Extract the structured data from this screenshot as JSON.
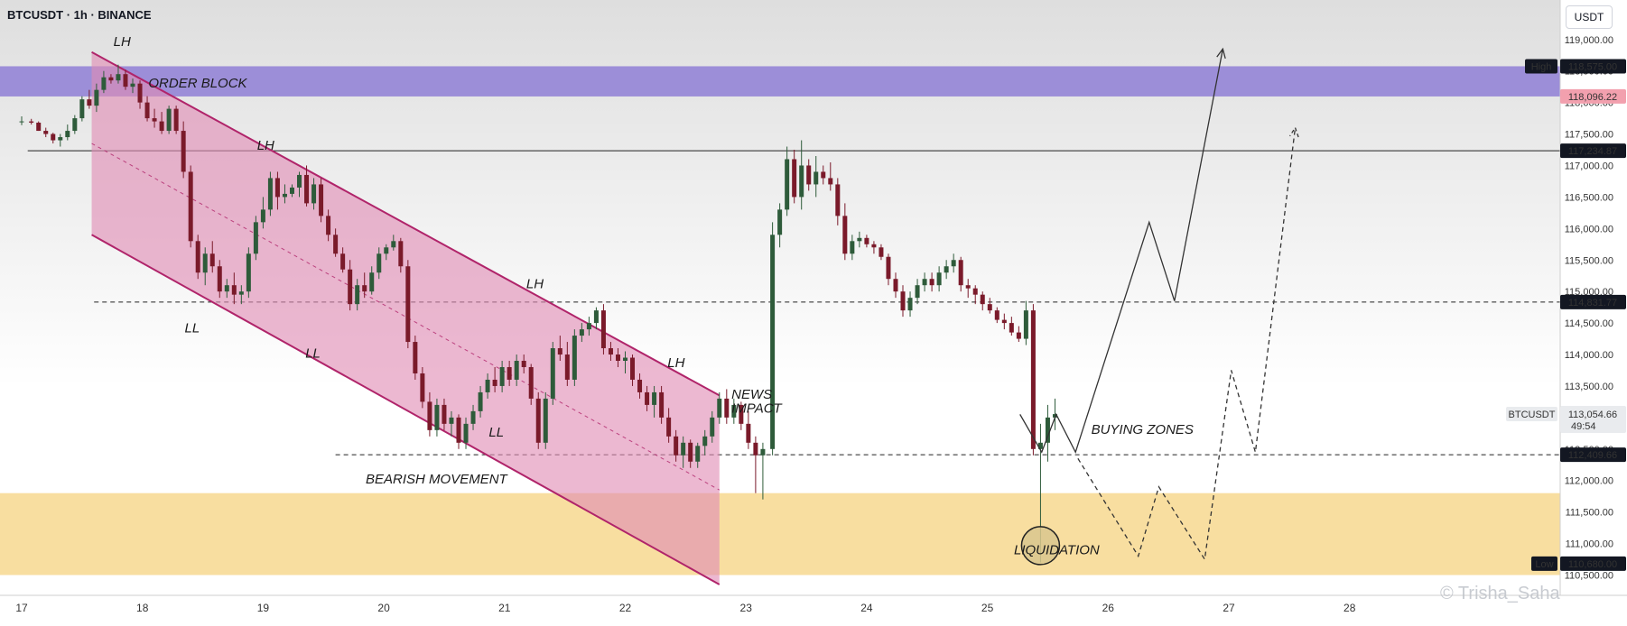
{
  "header": {
    "title": "BTCUSDT · 1h · BINANCE",
    "currency": "USDT"
  },
  "watermark": "© Trisha_Saha",
  "colors": {
    "bull": "#2e5b3a",
    "bear": "#7a1a2a",
    "channel_fill": "#e08cb4",
    "channel_line": "#b0246a",
    "order_block": "#9c8ed8",
    "liquidity_zone": "#f8dea0",
    "tag_dark": "#131722",
    "tag_pink": "#f2a0ae"
  },
  "chart_data": {
    "type": "candlestick",
    "x_axis": {
      "labels": [
        "17",
        "18",
        "19",
        "20",
        "21",
        "22",
        "23",
        "24",
        "25",
        "26",
        "27",
        "28"
      ]
    },
    "y_axis": {
      "range": [
        110500,
        119000
      ],
      "ticks": [
        119000,
        118500,
        118000,
        117500,
        117000,
        116500,
        116000,
        115500,
        115000,
        114500,
        114000,
        113500,
        113000,
        112500,
        112000,
        111500,
        111000,
        110500
      ]
    },
    "price_tags": [
      {
        "label": "High",
        "value": 118575,
        "text": "118,575.00",
        "style": "dark"
      },
      {
        "value": 118096.22,
        "text": "118,096.22",
        "style": "pink"
      },
      {
        "value": 117234.87,
        "text": "117,234.87",
        "style": "dark"
      },
      {
        "value": 114831.77,
        "text": "114,831.77",
        "style": "dark"
      },
      {
        "label": "BTCUSDT",
        "value": 113054.66,
        "text": "113,054.66",
        "sub": "49:54",
        "style": "grey"
      },
      {
        "value": 112409.66,
        "text": "112,409.66",
        "style": "dark"
      },
      {
        "label": "Low",
        "value": 110680,
        "text": "110,680.00",
        "style": "dark"
      }
    ],
    "horizontal_lines": [
      {
        "value": 117234.87,
        "dashed": false,
        "from_day": 17.05
      },
      {
        "value": 114831.77,
        "dashed": true,
        "from_day": 17.6
      },
      {
        "value": 112409.66,
        "dashed": true,
        "from_day": 19.6
      }
    ],
    "zones": {
      "order_block": {
        "label": "ORDER BLOCK",
        "low": 118096,
        "high": 118575
      },
      "liquidity": {
        "low": 110500,
        "high": 111800
      }
    },
    "channel": {
      "label": "BEARISH MOVEMENT",
      "upper": [
        [
          17.58,
          118800
        ],
        [
          22.78,
          113350
        ]
      ],
      "lower": [
        [
          17.58,
          115900
        ],
        [
          22.78,
          110350
        ]
      ]
    },
    "annotations": [
      {
        "text": "LH",
        "day": 17.76,
        "price": 118900
      },
      {
        "text": "LH",
        "day": 18.95,
        "price": 117250
      },
      {
        "text": "LL",
        "day": 18.35,
        "price": 114350
      },
      {
        "text": "LL",
        "day": 19.35,
        "price": 113950
      },
      {
        "text": "LH",
        "day": 21.18,
        "price": 115050
      },
      {
        "text": "LL",
        "day": 20.87,
        "price": 112700
      },
      {
        "text": "LH",
        "day": 22.35,
        "price": 113800
      },
      {
        "text": "NEWS",
        "day": 22.88,
        "price": 113300
      },
      {
        "text": "IMPACT",
        "day": 22.88,
        "price": 113080
      },
      {
        "text": "BEARISH MOVEMENT",
        "day": 19.85,
        "price": 111950
      },
      {
        "text": "BUYING ZONES",
        "day": 25.86,
        "price": 112740
      },
      {
        "text": "ORDER BLOCK",
        "day": 18.05,
        "price": 118240
      },
      {
        "text": "LIQUIDATION",
        "day": 25.22,
        "price": 110830
      }
    ],
    "projection_solid": [
      [
        25.27,
        113050
      ],
      [
        25.45,
        112450
      ],
      [
        25.57,
        113050
      ],
      [
        25.73,
        112450
      ],
      [
        26.34,
        116100
      ],
      [
        26.55,
        114850
      ],
      [
        26.95,
        118850
      ]
    ],
    "projection_dashed": [
      [
        25.75,
        112350
      ],
      [
        26.25,
        110800
      ],
      [
        26.42,
        111900
      ],
      [
        26.8,
        110750
      ],
      [
        27.02,
        113750
      ],
      [
        27.22,
        112450
      ],
      [
        27.55,
        117600
      ]
    ],
    "candles": [
      [
        16.5,
        117750,
        117780,
        117680,
        117700
      ],
      [
        17.0,
        117700,
        117780,
        117640,
        117700
      ],
      [
        17.08,
        117700,
        117740,
        117650,
        117680
      ],
      [
        17.14,
        117680,
        117700,
        117550,
        117550
      ],
      [
        17.2,
        117550,
        117600,
        117450,
        117500
      ],
      [
        17.26,
        117500,
        117520,
        117350,
        117400
      ],
      [
        17.32,
        117400,
        117500,
        117300,
        117450
      ],
      [
        17.38,
        117450,
        117650,
        117400,
        117550
      ],
      [
        17.44,
        117550,
        117800,
        117500,
        117750
      ],
      [
        17.5,
        117750,
        118100,
        117700,
        118050
      ],
      [
        17.56,
        118050,
        118200,
        117900,
        117950
      ],
      [
        17.62,
        117950,
        118300,
        117850,
        118200
      ],
      [
        17.68,
        118200,
        118500,
        118150,
        118400
      ],
      [
        17.74,
        118400,
        118450,
        118300,
        118350
      ],
      [
        17.8,
        118350,
        118600,
        118300,
        118450
      ],
      [
        17.86,
        118450,
        118520,
        118200,
        118250
      ],
      [
        17.92,
        118250,
        118380,
        118150,
        118300
      ],
      [
        17.98,
        118300,
        118350,
        117900,
        118000
      ],
      [
        18.04,
        118000,
        118100,
        117700,
        117750
      ],
      [
        18.1,
        117750,
        117900,
        117600,
        117700
      ],
      [
        18.16,
        117700,
        117850,
        117500,
        117550
      ],
      [
        18.22,
        117550,
        117950,
        117500,
        117900
      ],
      [
        18.28,
        117900,
        117950,
        117500,
        117550
      ],
      [
        18.34,
        117550,
        117700,
        116800,
        116900
      ],
      [
        18.4,
        116900,
        117000,
        115700,
        115800
      ],
      [
        18.46,
        115800,
        115900,
        115200,
        115300
      ],
      [
        18.52,
        115300,
        115700,
        115100,
        115600
      ],
      [
        18.58,
        115600,
        115800,
        115300,
        115400
      ],
      [
        18.64,
        115400,
        115500,
        114900,
        115000
      ],
      [
        18.7,
        115000,
        115200,
        114900,
        115100
      ],
      [
        18.76,
        115100,
        115300,
        114800,
        114950
      ],
      [
        18.82,
        114950,
        115100,
        114800,
        115000
      ],
      [
        18.88,
        115000,
        115700,
        114900,
        115600
      ],
      [
        18.94,
        115600,
        116200,
        115500,
        116100
      ],
      [
        19.0,
        116100,
        116500,
        116000,
        116300
      ],
      [
        19.06,
        116300,
        116900,
        116200,
        116800
      ],
      [
        19.12,
        116800,
        116900,
        116300,
        116500
      ],
      [
        19.18,
        116500,
        116700,
        116400,
        116550
      ],
      [
        19.24,
        116550,
        116700,
        116500,
        116650
      ],
      [
        19.3,
        116650,
        116900,
        116500,
        116850
      ],
      [
        19.36,
        116850,
        117000,
        116350,
        116400
      ],
      [
        19.42,
        116400,
        116800,
        116300,
        116700
      ],
      [
        19.48,
        116700,
        116800,
        116100,
        116200
      ],
      [
        19.54,
        116200,
        116300,
        115800,
        115900
      ],
      [
        19.6,
        115900,
        116000,
        115550,
        115600
      ],
      [
        19.66,
        115600,
        115700,
        115300,
        115350
      ],
      [
        19.72,
        115350,
        115500,
        114700,
        114800
      ],
      [
        19.78,
        114800,
        115200,
        114700,
        115100
      ],
      [
        19.84,
        115100,
        115300,
        114900,
        115000
      ],
      [
        19.9,
        115000,
        115400,
        114950,
        115300
      ],
      [
        19.96,
        115300,
        115700,
        115200,
        115600
      ],
      [
        20.02,
        115600,
        115750,
        115500,
        115700
      ],
      [
        20.08,
        115700,
        115900,
        115650,
        115800
      ],
      [
        20.14,
        115800,
        115850,
        115300,
        115400
      ],
      [
        20.2,
        115400,
        115500,
        114100,
        114200
      ],
      [
        20.26,
        114200,
        114300,
        113600,
        113700
      ],
      [
        20.32,
        113700,
        113800,
        113150,
        113250
      ],
      [
        20.38,
        113250,
        113400,
        112700,
        112800
      ],
      [
        20.44,
        112800,
        113300,
        112700,
        113200
      ],
      [
        20.5,
        113200,
        113300,
        112800,
        112900
      ],
      [
        20.56,
        112900,
        113100,
        112700,
        113000
      ],
      [
        20.62,
        113000,
        113050,
        112500,
        112600
      ],
      [
        20.68,
        112600,
        113000,
        112500,
        112900
      ],
      [
        20.74,
        112900,
        113200,
        112800,
        113100
      ],
      [
        20.8,
        113100,
        113500,
        113000,
        113400
      ],
      [
        20.86,
        113400,
        113700,
        113300,
        113600
      ],
      [
        20.92,
        113600,
        113800,
        113400,
        113500
      ],
      [
        20.98,
        113500,
        113900,
        113400,
        113800
      ],
      [
        21.04,
        113800,
        113900,
        113500,
        113600
      ],
      [
        21.1,
        113600,
        114000,
        113500,
        113900
      ],
      [
        21.16,
        113900,
        114000,
        113700,
        113800
      ],
      [
        21.22,
        113800,
        113850,
        113200,
        113300
      ],
      [
        21.28,
        113300,
        113400,
        112500,
        112600
      ],
      [
        21.34,
        112600,
        113400,
        112500,
        113300
      ],
      [
        21.4,
        113300,
        114200,
        113200,
        114100
      ],
      [
        21.46,
        114100,
        114300,
        113900,
        114000
      ],
      [
        21.52,
        114000,
        114200,
        113500,
        113600
      ],
      [
        21.58,
        113600,
        114400,
        113500,
        114300
      ],
      [
        21.64,
        114300,
        114500,
        114200,
        114400
      ],
      [
        21.7,
        114400,
        114600,
        114300,
        114500
      ],
      [
        21.76,
        114500,
        114750,
        114400,
        114700
      ],
      [
        21.82,
        114700,
        114800,
        114000,
        114100
      ],
      [
        21.88,
        114100,
        114200,
        113900,
        114000
      ],
      [
        21.94,
        114000,
        114100,
        113800,
        113900
      ],
      [
        22.0,
        113900,
        114050,
        113700,
        113950
      ],
      [
        22.06,
        113950,
        114000,
        113500,
        113600
      ],
      [
        22.12,
        113600,
        113700,
        113300,
        113400
      ],
      [
        22.18,
        113400,
        113500,
        113100,
        113200
      ],
      [
        22.24,
        113200,
        113500,
        113000,
        113400
      ],
      [
        22.3,
        113400,
        113500,
        112900,
        113000
      ],
      [
        22.36,
        113000,
        113150,
        112600,
        112700
      ],
      [
        22.42,
        112700,
        112800,
        112300,
        112400
      ],
      [
        22.48,
        112400,
        112700,
        112200,
        112600
      ],
      [
        22.54,
        112600,
        112650,
        112200,
        112300
      ],
      [
        22.6,
        112300,
        112600,
        112200,
        112550
      ],
      [
        22.66,
        112550,
        112800,
        112400,
        112700
      ],
      [
        22.72,
        112700,
        113100,
        112600,
        113000
      ],
      [
        22.78,
        113000,
        113400,
        112900,
        113300
      ],
      [
        22.84,
        113300,
        113450,
        112900,
        113000
      ],
      [
        22.9,
        113000,
        113300,
        112900,
        113200
      ],
      [
        22.96,
        113200,
        113250,
        112800,
        112900
      ],
      [
        23.02,
        112900,
        113100,
        112500,
        112600
      ],
      [
        23.08,
        112600,
        112700,
        111800,
        112400
      ],
      [
        23.14,
        112400,
        112600,
        111700,
        112500
      ],
      [
        23.22,
        112500,
        116100,
        112400,
        115900
      ],
      [
        23.28,
        115900,
        116400,
        115700,
        116300
      ],
      [
        23.34,
        116300,
        117300,
        116200,
        117100
      ],
      [
        23.4,
        117100,
        117250,
        116400,
        116500
      ],
      [
        23.46,
        116500,
        117400,
        116300,
        117000
      ],
      [
        23.52,
        117000,
        117100,
        116600,
        116700
      ],
      [
        23.58,
        116700,
        117150,
        116500,
        116900
      ],
      [
        23.64,
        116900,
        117000,
        116700,
        116800
      ],
      [
        23.7,
        116800,
        117050,
        116600,
        116700
      ],
      [
        23.76,
        116700,
        116800,
        116050,
        116200
      ],
      [
        23.82,
        116200,
        116400,
        115500,
        115600
      ],
      [
        23.88,
        115600,
        115900,
        115500,
        115800
      ],
      [
        23.94,
        115800,
        115950,
        115700,
        115850
      ],
      [
        24.0,
        115850,
        115900,
        115700,
        115750
      ],
      [
        24.06,
        115750,
        115800,
        115600,
        115700
      ],
      [
        24.12,
        115700,
        115750,
        115500,
        115550
      ],
      [
        24.18,
        115550,
        115600,
        115100,
        115200
      ],
      [
        24.24,
        115200,
        115300,
        114900,
        115000
      ],
      [
        24.3,
        115000,
        115100,
        114600,
        114700
      ],
      [
        24.36,
        114700,
        115000,
        114600,
        114900
      ],
      [
        24.42,
        114900,
        115200,
        114800,
        115100
      ],
      [
        24.48,
        115100,
        115300,
        115000,
        115200
      ],
      [
        24.54,
        115200,
        115300,
        115000,
        115100
      ],
      [
        24.6,
        115100,
        115400,
        115000,
        115300
      ],
      [
        24.66,
        115300,
        115500,
        115200,
        115400
      ],
      [
        24.72,
        115400,
        115600,
        115300,
        115500
      ],
      [
        24.78,
        115500,
        115550,
        115000,
        115100
      ],
      [
        24.84,
        115100,
        115200,
        114900,
        115050
      ],
      [
        24.9,
        115050,
        115100,
        114800,
        114950
      ],
      [
        24.96,
        114950,
        115000,
        114700,
        114800
      ],
      [
        25.02,
        114800,
        114900,
        114650,
        114700
      ],
      [
        25.08,
        114700,
        114750,
        114500,
        114550
      ],
      [
        25.14,
        114550,
        114650,
        114400,
        114500
      ],
      [
        25.2,
        114500,
        114600,
        114300,
        114350
      ],
      [
        25.26,
        114350,
        114450,
        114200,
        114250
      ],
      [
        25.32,
        114250,
        114850,
        114150,
        114700
      ],
      [
        25.38,
        114700,
        114800,
        112400,
        112500
      ],
      [
        25.44,
        112500,
        112900,
        110700,
        112600
      ],
      [
        25.5,
        112600,
        113200,
        112300,
        113000
      ],
      [
        25.56,
        113000,
        113300,
        112800,
        113054
      ]
    ]
  }
}
